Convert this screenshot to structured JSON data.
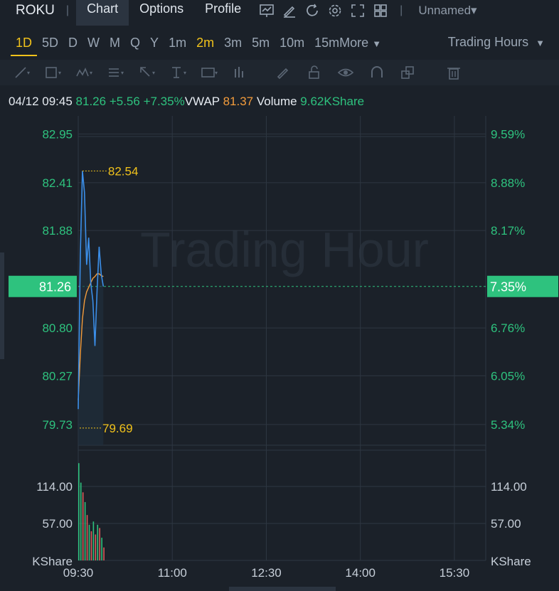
{
  "header": {
    "symbol": "ROKU",
    "tabs": [
      "Chart",
      "Options",
      "Profile"
    ],
    "layout_name": "Unnamed",
    "icons": [
      "chart-icon",
      "edit-icon",
      "refresh-icon",
      "gear-icon",
      "fullscreen-icon",
      "layout-grid-icon"
    ]
  },
  "timeframes": {
    "items": [
      "1D",
      "5D",
      "D",
      "W",
      "M",
      "Q",
      "Y",
      "1m",
      "2m",
      "3m",
      "5m",
      "10m",
      "15m"
    ],
    "selected": "1D",
    "highlighted": "2m",
    "more_label": "More",
    "session_label": "Trading Hours"
  },
  "drawing_tools": [
    "trendline-icon",
    "rectangle-icon",
    "pattern-icon",
    "fib-icon",
    "arrow-icon",
    "text-icon",
    "label-icon",
    "bars-icon",
    "pencil-icon",
    "lock-icon",
    "eye-icon",
    "magnet-icon",
    "layers-icon",
    "trash-icon"
  ],
  "info": {
    "datetime": "04/12 09:45",
    "price": "81.26",
    "change": "+5.56",
    "change_pct": "+7.35%",
    "vwap_label": "VWAP",
    "vwap_value": "81.37",
    "volume_label": "Volume",
    "volume_value": "9.62KShare"
  },
  "watermark": "Trading Hour",
  "colors": {
    "up": "#2ec27e",
    "vwap": "#f39c3c",
    "price_line": "#3b8ee8",
    "highlight": "#f1c21b",
    "background": "#1b2129"
  },
  "chart_data": {
    "type": "line",
    "price_axis": {
      "ylim": [
        79.5,
        83.15
      ],
      "left_ticks": [
        "82.95",
        "82.41",
        "81.88",
        "80.80",
        "80.27",
        "79.73"
      ],
      "left_tick_values": [
        82.95,
        82.41,
        81.88,
        80.8,
        80.27,
        79.73
      ],
      "right_ticks": [
        "9.59%",
        "8.88%",
        "8.17%",
        "6.76%",
        "6.05%",
        "5.34%"
      ],
      "current_value": 81.26,
      "current_label": "81.26",
      "current_pct_label": "7.35%",
      "high_label": "82.54",
      "high_value": 82.54,
      "low_label": "79.69",
      "low_value": 79.69
    },
    "x_axis": {
      "tick_labels": [
        "09:30",
        "11:00",
        "12:30",
        "14:00",
        "15:30"
      ],
      "tick_minutes": [
        0,
        90,
        180,
        270,
        360
      ],
      "xlim_minutes": [
        0,
        390
      ]
    },
    "series": [
      {
        "name": "Price",
        "x_minutes": [
          0,
          2,
          4,
          6,
          8,
          10,
          12,
          14,
          16,
          18,
          20,
          22,
          24
        ],
        "values": [
          79.9,
          81.6,
          82.54,
          82.3,
          81.5,
          81.8,
          81.3,
          81.1,
          80.6,
          81.2,
          81.7,
          81.4,
          81.26
        ]
      },
      {
        "name": "VWAP",
        "x_minutes": [
          0,
          2,
          4,
          6,
          8,
          10,
          12,
          14,
          16,
          18,
          20,
          22,
          24
        ],
        "values": [
          80.0,
          80.5,
          80.9,
          81.1,
          81.2,
          81.25,
          81.3,
          81.35,
          81.37,
          81.4,
          81.4,
          81.38,
          81.37
        ]
      }
    ],
    "volume": {
      "unit_label": "KShare",
      "left_ticks": [
        "114.00",
        "57.00"
      ],
      "right_ticks": [
        "114.00",
        "57.00"
      ],
      "tick_values": [
        114,
        57
      ],
      "ylim": [
        0,
        170
      ],
      "x_minutes": [
        0,
        2,
        4,
        6,
        8,
        10,
        12,
        14,
        16,
        18,
        20,
        22,
        24
      ],
      "values": [
        150,
        120,
        105,
        90,
        70,
        55,
        45,
        60,
        40,
        55,
        50,
        35,
        20
      ],
      "up": [
        true,
        true,
        false,
        true,
        false,
        true,
        false,
        true,
        false,
        true,
        false,
        true,
        false
      ]
    }
  }
}
